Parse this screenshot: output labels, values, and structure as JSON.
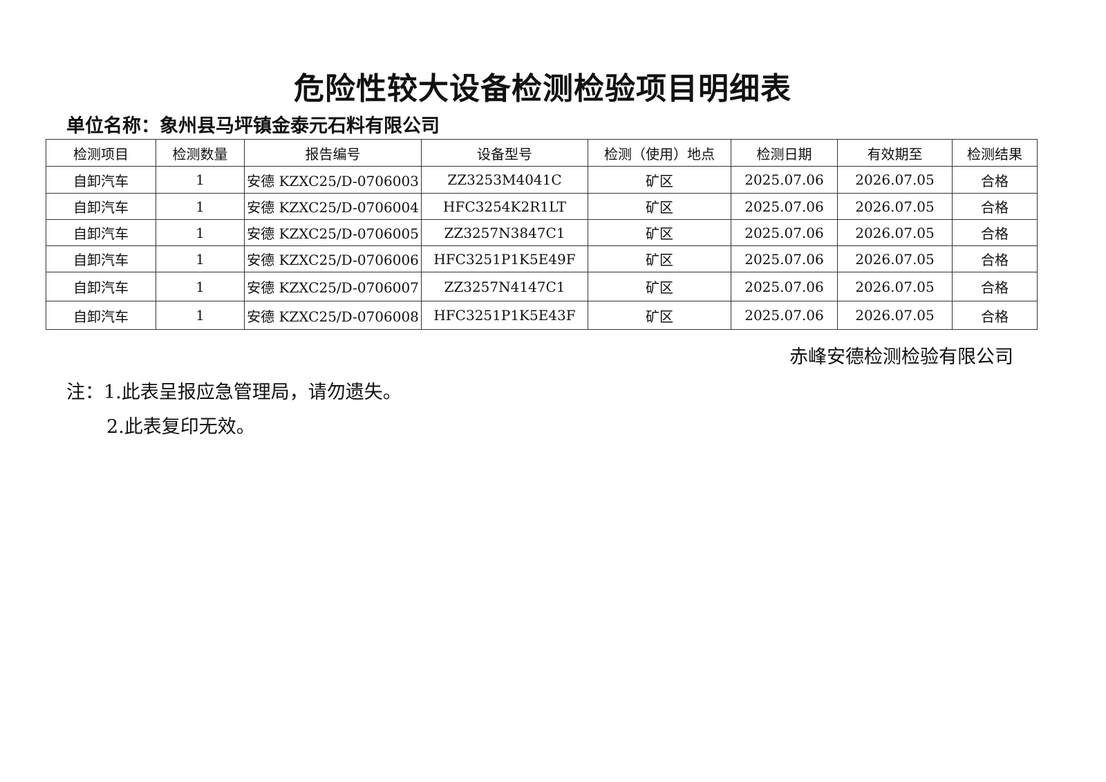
{
  "title": "危险性较大设备检测检验项目明细表",
  "unit": "单位名称：象州县马坪镇金泰元石料有限公司",
  "table": {
    "headers": [
      "检测项目",
      "检测数量",
      "报告编号",
      "设备型号",
      "检测（使用）地点",
      "检测日期",
      "有效期至",
      "检测结果"
    ],
    "rows": [
      [
        "自卸汽车",
        "1",
        "安德 KZXC25/D-0706003",
        "ZZ3253M4041C",
        "矿区",
        "2025.07.06",
        "2026.07.05",
        "合格"
      ],
      [
        "自卸汽车",
        "1",
        "安德 KZXC25/D-0706004",
        "HFC3254K2R1LT",
        "矿区",
        "2025.07.06",
        "2026.07.05",
        "合格"
      ],
      [
        "自卸汽车",
        "1",
        "安德 KZXC25/D-0706005",
        "ZZ3257N3847C1",
        "矿区",
        "2025.07.06",
        "2026.07.05",
        "合格"
      ],
      [
        "自卸汽车",
        "1",
        "安德 KZXC25/D-0706006",
        "HFC3251P1K5E49F",
        "矿区",
        "2025.07.06",
        "2026.07.05",
        "合格"
      ],
      [
        "自卸汽车",
        "1",
        "安德 KZXC25/D-0706007",
        "ZZ3257N4147C1",
        "矿区",
        "2025.07.06",
        "2026.07.05",
        "合格"
      ],
      [
        "自卸汽车",
        "1",
        "安德 KZXC25/D-0706008",
        "HFC3251P1K5E43F",
        "矿区",
        "2025.07.06",
        "2026.07.05",
        "合格"
      ]
    ]
  },
  "company": "赤峰安德检测检验有限公司",
  "notes": [
    "注：1.此表呈报应急管理局，请勿遗失。",
    "2.此表复印无效。"
  ]
}
